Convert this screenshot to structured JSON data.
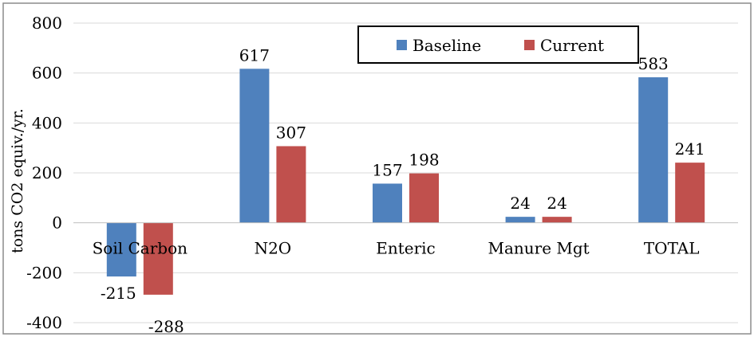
{
  "chart_data": {
    "type": "bar",
    "ylabel": "tons CO2 equiv./yr.",
    "ylim": [
      -400,
      800
    ],
    "yticks": [
      800,
      600,
      400,
      200,
      0,
      -200,
      -400
    ],
    "ytick_labels": [
      "800",
      "600",
      "400",
      "200",
      "0",
      "-200",
      "-400"
    ],
    "categories": [
      "Soil Carbon",
      "N2O",
      "Enteric",
      "Manure Mgt",
      "TOTAL"
    ],
    "series": [
      {
        "name": "Baseline",
        "color": "#4f81bd",
        "values": [
          -215,
          617,
          157,
          24,
          583
        ],
        "labels": [
          "-215",
          "617",
          "157",
          "24",
          "583"
        ]
      },
      {
        "name": "Current",
        "color": "#c0504d",
        "values": [
          -288,
          307,
          198,
          24,
          241
        ],
        "labels": [
          "-288",
          "307",
          "198",
          "24",
          "241"
        ]
      }
    ],
    "grid": true,
    "legend_position": "top-right"
  }
}
